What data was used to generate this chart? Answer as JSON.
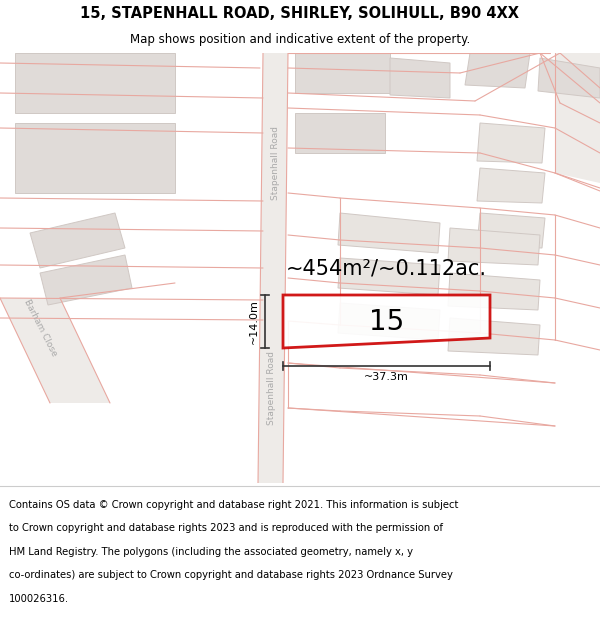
{
  "title": "15, STAPENHALL ROAD, SHIRLEY, SOLIHULL, B90 4XX",
  "subtitle": "Map shows position and indicative extent of the property.",
  "footer": "Contains OS data © Crown copyright and database right 2021. This information is subject to Crown copyright and database rights 2023 and is reproduced with the permission of HM Land Registry. The polygons (including the associated geometry, namely x, y co-ordinates) are subject to Crown copyright and database rights 2023 Ordnance Survey 100026316.",
  "area_label": "~454m²/~0.112ac.",
  "width_label": "~37.3m",
  "height_label": "~14.0m",
  "number_label": "15",
  "map_bg": "#f7f5f3",
  "road_fill": "#ede8e4",
  "boundary_color": "#e8a8a0",
  "building_fill": "#e0dbd8",
  "building_edge": "#d0c8c4",
  "highlight_edge": "#cc0000",
  "dim_color": "#333333",
  "label_color": "#cccccc",
  "road_label_color": "#aaaaaa"
}
